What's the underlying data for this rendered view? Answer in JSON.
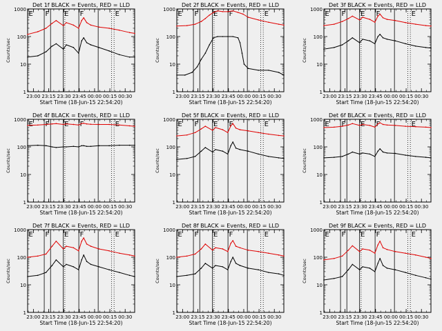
{
  "chart_data": {
    "type": "line",
    "yscale": "log",
    "ylim": [
      1,
      1000
    ],
    "ylabel": "Counts/sec",
    "xlabel": "Start Time (18-Jun-15 22:54:20)",
    "xlim_minutes": [
      0,
      105
    ],
    "x_tick_labels": [
      "23:00",
      "23:15",
      "23:30",
      "23:45",
      "00:00",
      "00:15",
      "00:30"
    ],
    "x_tick_minutes": [
      5.67,
      20.67,
      35.67,
      50.67,
      65.67,
      80.67,
      95.67
    ],
    "y_tick_labels": [
      "1",
      "10",
      "100",
      "1000"
    ],
    "y_tick_values": [
      1,
      10,
      100,
      1000
    ],
    "series_names": [
      "Events",
      "LLD"
    ],
    "series_colors": {
      "events": "#000000",
      "lld": "#e00000"
    },
    "markers": [
      {
        "label": "E",
        "minute": 0.0,
        "style": "dotted"
      },
      {
        "label": "F",
        "minute": 16.3,
        "style": "solid"
      },
      {
        "label": "",
        "minute": 22.5,
        "style": "solid"
      },
      {
        "label": "E",
        "minute": 35.0,
        "style": "solid"
      },
      {
        "label": "",
        "minute": 36.5,
        "style": "dotted"
      },
      {
        "label": "F",
        "minute": 50.2,
        "style": "solid"
      },
      {
        "label": "",
        "minute": 69.2,
        "style": "solid"
      },
      {
        "label": "",
        "minute": 82.3,
        "style": "dotted"
      },
      {
        "label": "E",
        "minute": 84.8,
        "style": "dotted"
      }
    ],
    "panels": [
      {
        "title": "Det 1f BLACK = Events, RED = LLD",
        "events": {
          "minute": [
            0,
            10,
            18,
            24,
            28,
            35,
            38,
            45,
            50,
            53,
            55,
            58,
            62,
            70,
            80,
            90,
            100,
            105
          ],
          "value": [
            18,
            20,
            28,
            45,
            55,
            35,
            50,
            40,
            25,
            70,
            90,
            60,
            50,
            40,
            30,
            22,
            18,
            18
          ]
        },
        "lld": {
          "minute": [
            0,
            10,
            18,
            24,
            28,
            35,
            38,
            45,
            50,
            53,
            55,
            58,
            62,
            70,
            80,
            90,
            100,
            105
          ],
          "value": [
            120,
            150,
            200,
            300,
            380,
            250,
            320,
            260,
            200,
            380,
            480,
            320,
            260,
            220,
            200,
            170,
            140,
            130
          ]
        }
      },
      {
        "title": "Det 2f BLACK = Events, RED = LLD",
        "events": {
          "minute": [
            0,
            8,
            15,
            20,
            24,
            28,
            32,
            36,
            40,
            45,
            50,
            55,
            60,
            62,
            64,
            66,
            70,
            80,
            90,
            100,
            105
          ],
          "value": [
            4,
            4,
            5,
            8,
            15,
            25,
            50,
            90,
            100,
            100,
            100,
            100,
            90,
            60,
            25,
            10,
            7,
            6,
            6,
            5,
            4
          ]
        },
        "lld": {
          "minute": [
            0,
            10,
            18,
            24,
            28,
            32,
            36,
            40,
            45,
            50,
            55,
            60,
            65,
            70,
            80,
            90,
            100,
            105
          ],
          "value": [
            240,
            250,
            280,
            350,
            450,
            600,
            750,
            850,
            800,
            800,
            850,
            750,
            650,
            500,
            400,
            330,
            280,
            260
          ]
        }
      },
      {
        "title": "Det 3f BLACK = Events, RED = LLD",
        "events": {
          "minute": [
            0,
            10,
            18,
            24,
            28,
            35,
            38,
            45,
            50,
            53,
            55,
            58,
            62,
            70,
            80,
            90,
            100,
            105
          ],
          "value": [
            35,
            40,
            50,
            70,
            90,
            60,
            80,
            70,
            55,
            100,
            120,
            90,
            80,
            70,
            55,
            45,
            40,
            38
          ]
        },
        "lld": {
          "minute": [
            0,
            10,
            18,
            24,
            28,
            35,
            38,
            45,
            50,
            53,
            55,
            58,
            62,
            70,
            80,
            90,
            100,
            105
          ],
          "value": [
            250,
            280,
            350,
            450,
            550,
            400,
            500,
            420,
            330,
            550,
            650,
            480,
            420,
            380,
            320,
            280,
            250,
            240
          ]
        }
      },
      {
        "title": "Det 4f BLACK = Events, RED = LLD",
        "events": {
          "minute": [
            0,
            10,
            18,
            24,
            28,
            35,
            38,
            45,
            50,
            53,
            55,
            58,
            62,
            70,
            80,
            90,
            100,
            105
          ],
          "value": [
            110,
            115,
            110,
            100,
            95,
            100,
            100,
            105,
            100,
            110,
            110,
            105,
            105,
            110,
            110,
            115,
            115,
            115
          ]
        },
        "lld": {
          "minute": [
            0,
            10,
            18,
            24,
            28,
            35,
            38,
            45,
            50,
            53,
            55,
            58,
            62,
            70,
            80,
            90,
            100,
            105
          ],
          "value": [
            600,
            620,
            650,
            680,
            700,
            650,
            680,
            650,
            620,
            700,
            720,
            680,
            660,
            650,
            650,
            620,
            580,
            560
          ]
        }
      },
      {
        "title": "Det 5f BLACK = Events, RED = LLD",
        "events": {
          "minute": [
            0,
            10,
            18,
            24,
            28,
            35,
            38,
            45,
            50,
            53,
            55,
            58,
            62,
            70,
            80,
            90,
            100,
            105
          ],
          "value": [
            35,
            38,
            45,
            70,
            95,
            65,
            80,
            70,
            55,
            110,
            150,
            90,
            80,
            70,
            55,
            45,
            40,
            38
          ]
        },
        "lld": {
          "minute": [
            0,
            10,
            18,
            24,
            28,
            35,
            38,
            45,
            50,
            53,
            55,
            58,
            62,
            70,
            80,
            90,
            100,
            105
          ],
          "value": [
            250,
            270,
            330,
            450,
            560,
            400,
            500,
            420,
            330,
            580,
            700,
            480,
            420,
            380,
            330,
            290,
            260,
            250
          ]
        }
      },
      {
        "title": "Det 6f BLACK = Events, RED = LLD",
        "events": {
          "minute": [
            0,
            10,
            18,
            24,
            28,
            35,
            38,
            45,
            50,
            53,
            55,
            58,
            62,
            70,
            80,
            90,
            100,
            105
          ],
          "value": [
            40,
            42,
            45,
            55,
            65,
            55,
            60,
            55,
            45,
            70,
            85,
            65,
            60,
            58,
            50,
            45,
            42,
            40
          ]
        },
        "lld": {
          "minute": [
            0,
            10,
            18,
            24,
            28,
            35,
            38,
            45,
            50,
            53,
            55,
            58,
            62,
            70,
            80,
            90,
            100,
            105
          ],
          "value": [
            500,
            520,
            560,
            620,
            700,
            600,
            650,
            600,
            520,
            680,
            750,
            650,
            620,
            600,
            560,
            540,
            520,
            500
          ]
        }
      },
      {
        "title": "Det 7f BLACK = Events, RED = LLD",
        "events": {
          "minute": [
            0,
            10,
            18,
            24,
            28,
            35,
            38,
            45,
            50,
            53,
            55,
            58,
            62,
            70,
            80,
            90,
            100,
            105
          ],
          "value": [
            20,
            22,
            28,
            50,
            80,
            45,
            55,
            45,
            35,
            80,
            120,
            70,
            55,
            45,
            35,
            28,
            22,
            20
          ]
        },
        "lld": {
          "minute": [
            0,
            10,
            18,
            24,
            28,
            35,
            38,
            45,
            50,
            53,
            55,
            58,
            62,
            70,
            80,
            90,
            100,
            105
          ],
          "value": [
            100,
            110,
            130,
            250,
            380,
            200,
            250,
            220,
            170,
            380,
            500,
            300,
            250,
            200,
            170,
            140,
            120,
            110
          ]
        }
      },
      {
        "title": "Det 8f BLACK = Events, RED = LLD",
        "events": {
          "minute": [
            0,
            10,
            18,
            24,
            28,
            35,
            38,
            45,
            50,
            53,
            55,
            58,
            62,
            70,
            80,
            90,
            100,
            105
          ],
          "value": [
            20,
            22,
            25,
            40,
            60,
            40,
            50,
            45,
            35,
            70,
            100,
            60,
            50,
            40,
            35,
            28,
            25,
            22
          ]
        },
        "lld": {
          "minute": [
            0,
            10,
            18,
            24,
            28,
            35,
            38,
            45,
            50,
            53,
            55,
            58,
            62,
            70,
            80,
            90,
            100,
            105
          ],
          "value": [
            100,
            110,
            130,
            200,
            300,
            180,
            220,
            200,
            160,
            320,
            400,
            250,
            220,
            180,
            160,
            140,
            120,
            110
          ]
        }
      },
      {
        "title": "Det 9f BLACK = Events, RED = LLD",
        "events": {
          "minute": [
            0,
            10,
            18,
            24,
            28,
            35,
            38,
            45,
            50,
            53,
            55,
            58,
            62,
            70,
            80,
            90,
            100,
            105
          ],
          "value": [
            15,
            17,
            20,
            35,
            55,
            35,
            45,
            40,
            30,
            60,
            90,
            50,
            40,
            35,
            28,
            22,
            18,
            16
          ]
        },
        "lld": {
          "minute": [
            0,
            10,
            18,
            24,
            28,
            35,
            38,
            45,
            50,
            53,
            55,
            58,
            62,
            70,
            80,
            90,
            100,
            105
          ],
          "value": [
            80,
            90,
            110,
            180,
            260,
            160,
            200,
            180,
            140,
            280,
            380,
            220,
            190,
            160,
            140,
            120,
            100,
            90
          ]
        }
      }
    ]
  }
}
